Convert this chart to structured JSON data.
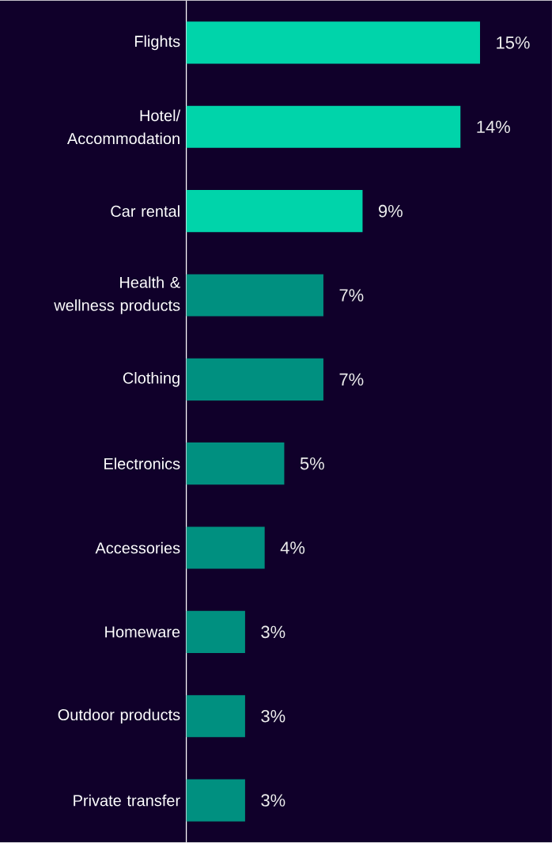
{
  "chart_data": {
    "type": "bar",
    "orientation": "horizontal",
    "categories": [
      "Flights",
      "Hotel/ Accommodation",
      "Car rental",
      "Health & wellness products",
      "Clothing",
      "Electronics",
      "Accessories",
      "Homeware",
      "Outdoor products",
      "Private transfer"
    ],
    "values": [
      15,
      14,
      9,
      7,
      7,
      5,
      4,
      3,
      3,
      3
    ],
    "value_labels": [
      "15%",
      "14%",
      "9%",
      "7%",
      "7%",
      "5%",
      "4%",
      "3%",
      "3%",
      "3%"
    ],
    "colors": [
      "#00d4aa",
      "#00d4aa",
      "#00d4aa",
      "#009080",
      "#009080",
      "#009080",
      "#009080",
      "#009080",
      "#009080",
      "#009080"
    ]
  }
}
